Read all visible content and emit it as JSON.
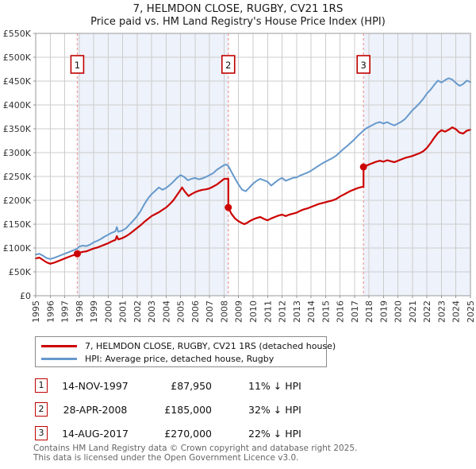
{
  "title": {
    "line1": "7, HELMDON CLOSE, RUGBY, CV21 1RS",
    "line2": "Price paid vs. HM Land Registry's House Price Index (HPI)"
  },
  "chart_data": {
    "type": "line",
    "title": "7, HELMDON CLOSE, RUGBY, CV21 1RS",
    "subtitle": "Price paid vs. HM Land Registry's House Price Index (HPI)",
    "xlabel": "",
    "ylabel": "",
    "grid": true,
    "legend_position": "below",
    "x_axis": {
      "min": 1995,
      "max": 2025,
      "tick_years_step": 1
    },
    "y_axis": {
      "min": 0,
      "max": 550000,
      "tick_step": 50000,
      "tick_labels": [
        "£0",
        "£50K",
        "£100K",
        "£150K",
        "£200K",
        "£250K",
        "£300K",
        "£350K",
        "£400K",
        "£450K",
        "£500K",
        "£550K"
      ]
    },
    "colors": {
      "grid": "#cccccc",
      "border": "#999999",
      "shade": "#eef2fa",
      "event_line": "#ef9f9f",
      "marker_border": "#c00000",
      "tick_text": "#333333"
    },
    "shaded_spans": [
      [
        1997.87,
        2008.29
      ],
      [
        2017.62,
        2025
      ]
    ],
    "sale_events": [
      {
        "label": "1",
        "year": 1997.87,
        "price": 87950
      },
      {
        "label": "2",
        "year": 2008.29,
        "price": 185000
      },
      {
        "label": "3",
        "year": 2017.62,
        "price": 270000
      }
    ],
    "series": [
      {
        "name": "7, HELMDON CLOSE, RUGBY, CV21 1RS (detached house)",
        "color": "#cc0000",
        "width": 2.2,
        "points": [
          [
            1995,
            78000
          ],
          [
            1995.25,
            80000
          ],
          [
            1995.5,
            75000
          ],
          [
            1995.75,
            70000
          ],
          [
            1996,
            67000
          ],
          [
            1996.25,
            69000
          ],
          [
            1996.5,
            72000
          ],
          [
            1996.75,
            75000
          ],
          [
            1997,
            78000
          ],
          [
            1997.25,
            81000
          ],
          [
            1997.5,
            84000
          ],
          [
            1997.75,
            86000
          ],
          [
            1997.87,
            87950
          ],
          [
            1998,
            90000
          ],
          [
            1998.25,
            92000
          ],
          [
            1998.5,
            93000
          ],
          [
            1998.75,
            96000
          ],
          [
            1999,
            99000
          ],
          [
            1999.25,
            101000
          ],
          [
            1999.5,
            104000
          ],
          [
            1999.75,
            107000
          ],
          [
            2000,
            110000
          ],
          [
            2000.25,
            114000
          ],
          [
            2000.5,
            117000
          ],
          [
            2000.6,
            125000
          ],
          [
            2000.7,
            118000
          ],
          [
            2001,
            121000
          ],
          [
            2001.25,
            125000
          ],
          [
            2001.5,
            130000
          ],
          [
            2001.75,
            136000
          ],
          [
            2002,
            142000
          ],
          [
            2002.25,
            148000
          ],
          [
            2002.5,
            155000
          ],
          [
            2002.75,
            161000
          ],
          [
            2003,
            167000
          ],
          [
            2003.25,
            171000
          ],
          [
            2003.5,
            175000
          ],
          [
            2003.75,
            180000
          ],
          [
            2004,
            185000
          ],
          [
            2004.25,
            192000
          ],
          [
            2004.5,
            200000
          ],
          [
            2004.75,
            211000
          ],
          [
            2005,
            222000
          ],
          [
            2005.1,
            227000
          ],
          [
            2005.3,
            218000
          ],
          [
            2005.55,
            209000
          ],
          [
            2005.75,
            213000
          ],
          [
            2006,
            217000
          ],
          [
            2006.25,
            220000
          ],
          [
            2006.5,
            222000
          ],
          [
            2006.75,
            223000
          ],
          [
            2007,
            225000
          ],
          [
            2007.25,
            229000
          ],
          [
            2007.5,
            233000
          ],
          [
            2007.75,
            239000
          ],
          [
            2008,
            245000
          ],
          [
            2008.29,
            245000
          ],
          [
            2008.29,
            185000
          ],
          [
            2008.5,
            172000
          ],
          [
            2008.75,
            162000
          ],
          [
            2009,
            156000
          ],
          [
            2009.25,
            152000
          ],
          [
            2009.4,
            150000
          ],
          [
            2009.6,
            153000
          ],
          [
            2009.75,
            156000
          ],
          [
            2010,
            160000
          ],
          [
            2010.25,
            163000
          ],
          [
            2010.5,
            165000
          ],
          [
            2010.75,
            161000
          ],
          [
            2011,
            158000
          ],
          [
            2011.25,
            162000
          ],
          [
            2011.5,
            165000
          ],
          [
            2011.75,
            168000
          ],
          [
            2012,
            170000
          ],
          [
            2012.25,
            167000
          ],
          [
            2012.5,
            170000
          ],
          [
            2012.75,
            172000
          ],
          [
            2013,
            174000
          ],
          [
            2013.25,
            178000
          ],
          [
            2013.5,
            181000
          ],
          [
            2013.75,
            183000
          ],
          [
            2014,
            186000
          ],
          [
            2014.25,
            189000
          ],
          [
            2014.5,
            192000
          ],
          [
            2014.75,
            194000
          ],
          [
            2015,
            196000
          ],
          [
            2015.25,
            198000
          ],
          [
            2015.5,
            200000
          ],
          [
            2015.75,
            203000
          ],
          [
            2016,
            208000
          ],
          [
            2016.25,
            212000
          ],
          [
            2016.5,
            216000
          ],
          [
            2016.75,
            220000
          ],
          [
            2017,
            223000
          ],
          [
            2017.25,
            226000
          ],
          [
            2017.5,
            228000
          ],
          [
            2017.62,
            228000
          ],
          [
            2017.62,
            270000
          ],
          [
            2017.75,
            272000
          ],
          [
            2018,
            275000
          ],
          [
            2018.25,
            278000
          ],
          [
            2018.5,
            281000
          ],
          [
            2018.75,
            283000
          ],
          [
            2019,
            281000
          ],
          [
            2019.25,
            284000
          ],
          [
            2019.5,
            282000
          ],
          [
            2019.75,
            280000
          ],
          [
            2020,
            283000
          ],
          [
            2020.25,
            286000
          ],
          [
            2020.5,
            289000
          ],
          [
            2020.75,
            291000
          ],
          [
            2021,
            293000
          ],
          [
            2021.25,
            296000
          ],
          [
            2021.5,
            299000
          ],
          [
            2021.75,
            303000
          ],
          [
            2022,
            310000
          ],
          [
            2022.25,
            320000
          ],
          [
            2022.5,
            331000
          ],
          [
            2022.75,
            341000
          ],
          [
            2023,
            347000
          ],
          [
            2023.25,
            344000
          ],
          [
            2023.5,
            348000
          ],
          [
            2023.75,
            353000
          ],
          [
            2024,
            349000
          ],
          [
            2024.25,
            342000
          ],
          [
            2024.5,
            340000
          ],
          [
            2024.75,
            346000
          ],
          [
            2025,
            348000
          ]
        ]
      },
      {
        "name": "HPI: Average price, detached house, Rugby",
        "color": "#6699cc",
        "width": 2,
        "points": [
          [
            1995,
            86000
          ],
          [
            1995.25,
            88000
          ],
          [
            1995.5,
            84000
          ],
          [
            1995.75,
            79000
          ],
          [
            1996,
            77000
          ],
          [
            1996.25,
            79000
          ],
          [
            1996.5,
            82000
          ],
          [
            1996.75,
            85000
          ],
          [
            1997,
            88000
          ],
          [
            1997.25,
            91000
          ],
          [
            1997.5,
            94000
          ],
          [
            1997.75,
            97000
          ],
          [
            1997.87,
            99000
          ],
          [
            1998,
            103000
          ],
          [
            1998.25,
            105000
          ],
          [
            1998.5,
            104000
          ],
          [
            1998.75,
            107000
          ],
          [
            1999,
            112000
          ],
          [
            1999.25,
            115000
          ],
          [
            1999.5,
            119000
          ],
          [
            1999.75,
            124000
          ],
          [
            2000,
            128000
          ],
          [
            2000.25,
            132000
          ],
          [
            2000.5,
            135000
          ],
          [
            2000.6,
            144000
          ],
          [
            2000.7,
            134000
          ],
          [
            2001,
            137000
          ],
          [
            2001.25,
            142000
          ],
          [
            2001.5,
            150000
          ],
          [
            2001.75,
            158000
          ],
          [
            2002,
            167000
          ],
          [
            2002.25,
            178000
          ],
          [
            2002.5,
            192000
          ],
          [
            2002.75,
            204000
          ],
          [
            2003,
            213000
          ],
          [
            2003.25,
            220000
          ],
          [
            2003.5,
            227000
          ],
          [
            2003.75,
            222000
          ],
          [
            2004,
            226000
          ],
          [
            2004.25,
            232000
          ],
          [
            2004.5,
            239000
          ],
          [
            2004.75,
            247000
          ],
          [
            2005,
            253000
          ],
          [
            2005.25,
            249000
          ],
          [
            2005.5,
            242000
          ],
          [
            2005.75,
            245000
          ],
          [
            2006,
            247000
          ],
          [
            2006.25,
            244000
          ],
          [
            2006.5,
            246000
          ],
          [
            2006.75,
            249000
          ],
          [
            2007,
            253000
          ],
          [
            2007.25,
            257000
          ],
          [
            2007.5,
            264000
          ],
          [
            2007.75,
            269000
          ],
          [
            2008,
            274000
          ],
          [
            2008.15,
            275000
          ],
          [
            2008.29,
            272000
          ],
          [
            2008.5,
            260000
          ],
          [
            2008.75,
            246000
          ],
          [
            2009,
            233000
          ],
          [
            2009.25,
            222000
          ],
          [
            2009.5,
            219000
          ],
          [
            2009.75,
            227000
          ],
          [
            2010,
            235000
          ],
          [
            2010.25,
            241000
          ],
          [
            2010.5,
            245000
          ],
          [
            2010.75,
            242000
          ],
          [
            2011,
            239000
          ],
          [
            2011.25,
            231000
          ],
          [
            2011.5,
            237000
          ],
          [
            2011.75,
            243000
          ],
          [
            2012,
            247000
          ],
          [
            2012.25,
            241000
          ],
          [
            2012.5,
            244000
          ],
          [
            2012.75,
            247000
          ],
          [
            2013,
            248000
          ],
          [
            2013.25,
            252000
          ],
          [
            2013.5,
            255000
          ],
          [
            2013.75,
            258000
          ],
          [
            2014,
            262000
          ],
          [
            2014.25,
            267000
          ],
          [
            2014.5,
            272000
          ],
          [
            2014.75,
            277000
          ],
          [
            2015,
            281000
          ],
          [
            2015.25,
            285000
          ],
          [
            2015.5,
            289000
          ],
          [
            2015.75,
            294000
          ],
          [
            2016,
            301000
          ],
          [
            2016.25,
            308000
          ],
          [
            2016.5,
            314000
          ],
          [
            2016.75,
            321000
          ],
          [
            2017,
            328000
          ],
          [
            2017.25,
            336000
          ],
          [
            2017.5,
            343000
          ],
          [
            2017.62,
            346000
          ],
          [
            2017.75,
            350000
          ],
          [
            2018,
            354000
          ],
          [
            2018.25,
            358000
          ],
          [
            2018.5,
            362000
          ],
          [
            2018.75,
            364000
          ],
          [
            2019,
            361000
          ],
          [
            2019.25,
            364000
          ],
          [
            2019.5,
            360000
          ],
          [
            2019.75,
            357000
          ],
          [
            2020,
            361000
          ],
          [
            2020.25,
            365000
          ],
          [
            2020.5,
            371000
          ],
          [
            2020.75,
            380000
          ],
          [
            2021,
            389000
          ],
          [
            2021.25,
            396000
          ],
          [
            2021.5,
            404000
          ],
          [
            2021.75,
            413000
          ],
          [
            2022,
            424000
          ],
          [
            2022.25,
            432000
          ],
          [
            2022.5,
            442000
          ],
          [
            2022.75,
            451000
          ],
          [
            2023,
            447000
          ],
          [
            2023.25,
            452000
          ],
          [
            2023.5,
            456000
          ],
          [
            2023.75,
            453000
          ],
          [
            2024,
            446000
          ],
          [
            2024.25,
            440000
          ],
          [
            2024.5,
            444000
          ],
          [
            2024.75,
            451000
          ],
          [
            2025,
            448000
          ]
        ]
      }
    ]
  },
  "sales_table": {
    "rows": [
      {
        "num": "1",
        "date": "14-NOV-1997",
        "price": "£87,950",
        "vs_hpi": "11% ↓ HPI"
      },
      {
        "num": "2",
        "date": "28-APR-2008",
        "price": "£185,000",
        "vs_hpi": "32% ↓ HPI"
      },
      {
        "num": "3",
        "date": "14-AUG-2017",
        "price": "£270,000",
        "vs_hpi": "22% ↓ HPI"
      }
    ]
  },
  "footer": {
    "line1": "Contains HM Land Registry data © Crown copyright and database right 2025.",
    "line2": "This data is licensed under the Open Government Licence v3.0."
  }
}
